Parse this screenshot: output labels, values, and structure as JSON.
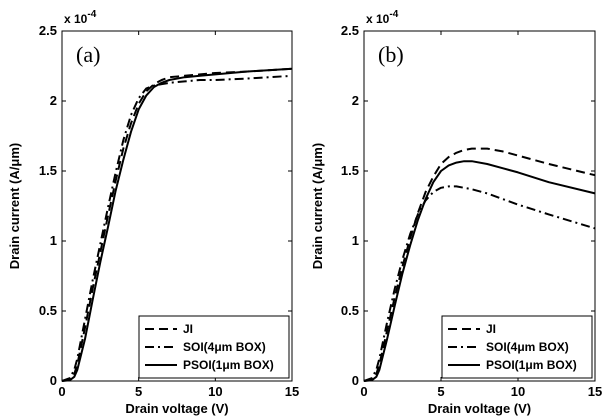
{
  "chart_data": [
    {
      "type": "line",
      "panel_label": "(a)",
      "xlabel": "Drain voltage (V)",
      "ylabel": "Drain current (A/μm)",
      "y_multiplier": "x 10",
      "y_multiplier_exp": "-4",
      "xlim": [
        0,
        15
      ],
      "ylim": [
        0,
        2.5
      ],
      "xticks": [
        0,
        5,
        10,
        15
      ],
      "yticks": [
        0,
        0.5,
        1,
        1.5,
        2,
        2.5
      ],
      "legend_position": "bottom-right",
      "series": [
        {
          "name": "JI",
          "dash": "dashed",
          "x": [
            0,
            0.5,
            0.8,
            1,
            1.5,
            2,
            2.5,
            3,
            3.5,
            4,
            4.5,
            5,
            5.5,
            6,
            6.5,
            7,
            8,
            9,
            10,
            12,
            15
          ],
          "y": [
            0,
            0.01,
            0.05,
            0.12,
            0.38,
            0.66,
            0.92,
            1.18,
            1.43,
            1.66,
            1.84,
            1.98,
            2.07,
            2.12,
            2.15,
            2.17,
            2.18,
            2.19,
            2.2,
            2.21,
            2.23
          ]
        },
        {
          "name": "SOI(4μm BOX)",
          "dash": "dashdot",
          "x": [
            0,
            0.5,
            0.8,
            1,
            1.5,
            2,
            2.5,
            3,
            3.5,
            4,
            4.5,
            5,
            5.5,
            6,
            6.5,
            7,
            8,
            9,
            10,
            12,
            15
          ],
          "y": [
            0,
            0.02,
            0.08,
            0.16,
            0.44,
            0.72,
            0.98,
            1.24,
            1.49,
            1.72,
            1.9,
            2.02,
            2.09,
            2.11,
            2.12,
            2.13,
            2.14,
            2.15,
            2.15,
            2.16,
            2.18
          ]
        },
        {
          "name": "PSOI(1μm BOX)",
          "dash": "solid",
          "x": [
            0,
            0.5,
            0.8,
            1,
            1.5,
            2,
            2.5,
            3,
            3.5,
            4,
            4.5,
            5,
            5.5,
            6,
            6.5,
            7,
            8,
            9,
            10,
            12,
            15
          ],
          "y": [
            0,
            0.005,
            0.03,
            0.08,
            0.3,
            0.58,
            0.85,
            1.1,
            1.36,
            1.58,
            1.78,
            1.94,
            2.04,
            2.1,
            2.13,
            2.15,
            2.17,
            2.18,
            2.19,
            2.21,
            2.23
          ]
        }
      ]
    },
    {
      "type": "line",
      "panel_label": "(b)",
      "xlabel": "Drain voltage (V)",
      "ylabel": "Drain current (A/μm)",
      "y_multiplier": "x 10",
      "y_multiplier_exp": "-4",
      "xlim": [
        0,
        15
      ],
      "ylim": [
        0,
        2.5
      ],
      "xticks": [
        0,
        5,
        10,
        15
      ],
      "yticks": [
        0,
        0.5,
        1,
        1.5,
        2,
        2.5
      ],
      "legend_position": "bottom-right",
      "series": [
        {
          "name": "JI",
          "dash": "dashed",
          "x": [
            0,
            0.5,
            0.8,
            1,
            1.5,
            2,
            2.5,
            3,
            3.5,
            4,
            4.5,
            5,
            5.5,
            6,
            6.5,
            7,
            8,
            9,
            10,
            12,
            15
          ],
          "y": [
            0,
            0.01,
            0.05,
            0.12,
            0.36,
            0.6,
            0.82,
            1.02,
            1.2,
            1.35,
            1.46,
            1.55,
            1.6,
            1.63,
            1.65,
            1.66,
            1.66,
            1.64,
            1.61,
            1.55,
            1.47
          ]
        },
        {
          "name": "SOI(4μm BOX)",
          "dash": "dashdot",
          "x": [
            0,
            0.5,
            0.8,
            1,
            1.5,
            2,
            2.5,
            3,
            3.5,
            4,
            4.5,
            5,
            5.5,
            6,
            6.5,
            7,
            8,
            9,
            10,
            12,
            15
          ],
          "y": [
            0,
            0.02,
            0.08,
            0.16,
            0.42,
            0.66,
            0.87,
            1.05,
            1.19,
            1.29,
            1.35,
            1.38,
            1.39,
            1.39,
            1.38,
            1.37,
            1.34,
            1.3,
            1.26,
            1.19,
            1.09
          ]
        },
        {
          "name": "PSOI(1μm BOX)",
          "dash": "solid",
          "x": [
            0,
            0.5,
            0.8,
            1,
            1.5,
            2,
            2.5,
            3,
            3.5,
            4,
            4.5,
            5,
            5.5,
            6,
            6.5,
            7,
            8,
            9,
            10,
            12,
            15
          ],
          "y": [
            0,
            0.005,
            0.03,
            0.08,
            0.3,
            0.54,
            0.77,
            0.97,
            1.15,
            1.3,
            1.42,
            1.5,
            1.54,
            1.56,
            1.57,
            1.57,
            1.55,
            1.52,
            1.49,
            1.42,
            1.34
          ]
        }
      ]
    }
  ]
}
